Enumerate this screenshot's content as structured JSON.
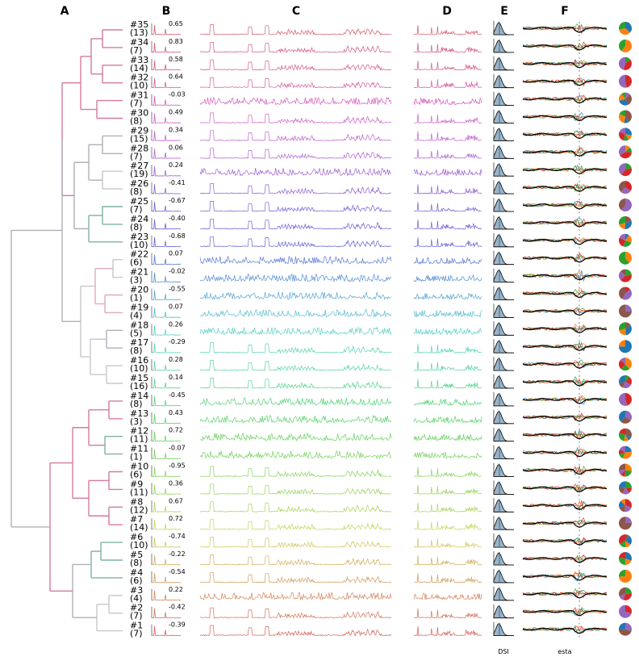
{
  "panels": {
    "A": "A",
    "B": "B",
    "C": "C",
    "D": "D",
    "E": "E",
    "F": "F",
    "e_xlabel": "DSI",
    "f_xlabel": "esta"
  },
  "chart_data": {
    "type": "line",
    "clusters": [
      {
        "id": "#35",
        "count": "(13)",
        "corr": "0.65",
        "color": "#d45f6e"
      },
      {
        "id": "#34",
        "count": "(7)",
        "corr": "0.83",
        "color": "#d55a7e"
      },
      {
        "id": "#33",
        "count": "(14)",
        "corr": "0.58",
        "color": "#d65a8c"
      },
      {
        "id": "#32",
        "count": "(10)",
        "corr": "0.64",
        "color": "#d65c9e"
      },
      {
        "id": "#31",
        "count": "(7)",
        "corr": "-0.03",
        "color": "#d45cba"
      },
      {
        "id": "#30",
        "count": "(8)",
        "corr": "0.49",
        "color": "#ce5ec8"
      },
      {
        "id": "#29",
        "count": "(15)",
        "corr": "0.34",
        "color": "#c060d0"
      },
      {
        "id": "#28",
        "count": "(7)",
        "corr": "0.06",
        "color": "#b262d2"
      },
      {
        "id": "#27",
        "count": "(19)",
        "corr": "0.24",
        "color": "#a05fd0"
      },
      {
        "id": "#26",
        "count": "(8)",
        "corr": "-0.41",
        "color": "#8d5fd0"
      },
      {
        "id": "#25",
        "count": "(7)",
        "corr": "-0.67",
        "color": "#7a5fd4"
      },
      {
        "id": "#24",
        "count": "(8)",
        "corr": "-0.40",
        "color": "#6a5dd6"
      },
      {
        "id": "#23",
        "count": "(10)",
        "corr": "-0.68",
        "color": "#5f62d6"
      },
      {
        "id": "#22",
        "count": "(6)",
        "corr": "0.07",
        "color": "#5a78d4"
      },
      {
        "id": "#21",
        "count": "(3)",
        "corr": "-0.02",
        "color": "#5890d2"
      },
      {
        "id": "#20",
        "count": "(1)",
        "corr": "-0.55",
        "color": "#57a6d4"
      },
      {
        "id": "#19",
        "count": "(4)",
        "corr": "0.07",
        "color": "#56bcd2"
      },
      {
        "id": "#18",
        "count": "(5)",
        "corr": "0.26",
        "color": "#57cfc9"
      },
      {
        "id": "#17",
        "count": "(8)",
        "corr": "-0.29",
        "color": "#57d2b6"
      },
      {
        "id": "#16",
        "count": "(10)",
        "corr": "0.28",
        "color": "#57d3a2"
      },
      {
        "id": "#15",
        "count": "(16)",
        "corr": "0.14",
        "color": "#57d48e"
      },
      {
        "id": "#14",
        "count": "(8)",
        "corr": "-0.45",
        "color": "#57d47a"
      },
      {
        "id": "#13",
        "count": "(3)",
        "corr": "0.43",
        "color": "#5ad26a"
      },
      {
        "id": "#12",
        "count": "(11)",
        "corr": "0.72",
        "color": "#66d25e"
      },
      {
        "id": "#11",
        "count": "(1)",
        "corr": "-0.07",
        "color": "#74d25a"
      },
      {
        "id": "#10",
        "count": "(6)",
        "corr": "-0.95",
        "color": "#86d45a"
      },
      {
        "id": "#9",
        "count": "(11)",
        "corr": "0.36",
        "color": "#98d45a"
      },
      {
        "id": "#8",
        "count": "(12)",
        "corr": "0.67",
        "color": "#aad45a"
      },
      {
        "id": "#7",
        "count": "(14)",
        "corr": "0.72",
        "color": "#c4d45c"
      },
      {
        "id": "#6",
        "count": "(10)",
        "corr": "-0.74",
        "color": "#d2c45c"
      },
      {
        "id": "#5",
        "count": "(8)",
        "corr": "-0.22",
        "color": "#d4ae5c"
      },
      {
        "id": "#4",
        "count": "(6)",
        "corr": "-0.54",
        "color": "#d49a5c"
      },
      {
        "id": "#3",
        "count": "(4)",
        "corr": "0.22",
        "color": "#d4865c"
      },
      {
        "id": "#2",
        "count": "(7)",
        "corr": "-0.42",
        "color": "#d4745c"
      },
      {
        "id": "#1",
        "count": "(7)",
        "corr": "-0.39",
        "color": "#d4625c"
      }
    ]
  }
}
